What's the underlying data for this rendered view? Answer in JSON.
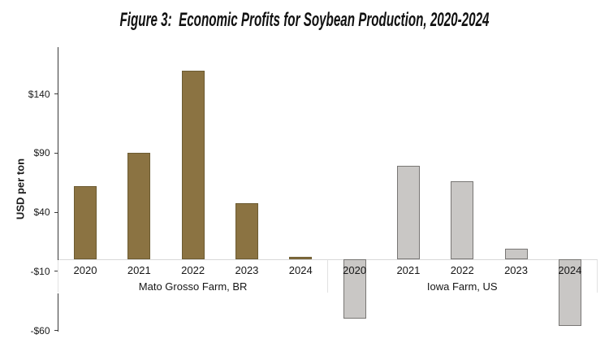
{
  "title": "Figure 3:  Economic Profits for Soybean Production, 2020-2024",
  "colors": {
    "background": "#ffffff",
    "text": "#1a1a1a",
    "axis": "#3a3a3a",
    "zero_line": "#d9d9d9",
    "group_divider": "#e2e2e2",
    "brazil_bar_fill": "#8b7342",
    "brazil_bar_border": "#6c5b31",
    "us_bar_fill": "#c9c7c5",
    "us_bar_border": "#787674"
  },
  "chart_data": {
    "type": "bar",
    "title": "Figure 3:  Economic Profits for Soybean Production, 2020-2024",
    "xlabel": "",
    "ylabel": "USD per ton",
    "ylim": [
      -60,
      180
    ],
    "grid": false,
    "legend": false,
    "yticks": [
      {
        "value": 140,
        "label": "$140"
      },
      {
        "value": 90,
        "label": "$90"
      },
      {
        "value": 40,
        "label": "$40"
      },
      {
        "value": -10,
        "label": "-$10"
      },
      {
        "value": -60,
        "label": "-$60"
      }
    ],
    "groups": [
      {
        "label": "Mato Grosso Farm, BR",
        "fill": "#8b7342",
        "border": "#6c5b31",
        "categories": [
          "2020",
          "2021",
          "2022",
          "2023",
          "2024"
        ],
        "values": [
          62,
          90,
          160,
          48,
          2
        ]
      },
      {
        "label": "Iowa Farm, US",
        "fill": "#c9c7c5",
        "border": "#787674",
        "categories": [
          "2020",
          "2021",
          "2022",
          "2023",
          "2024"
        ],
        "values": [
          -50,
          79,
          66,
          9,
          -56
        ]
      }
    ]
  }
}
